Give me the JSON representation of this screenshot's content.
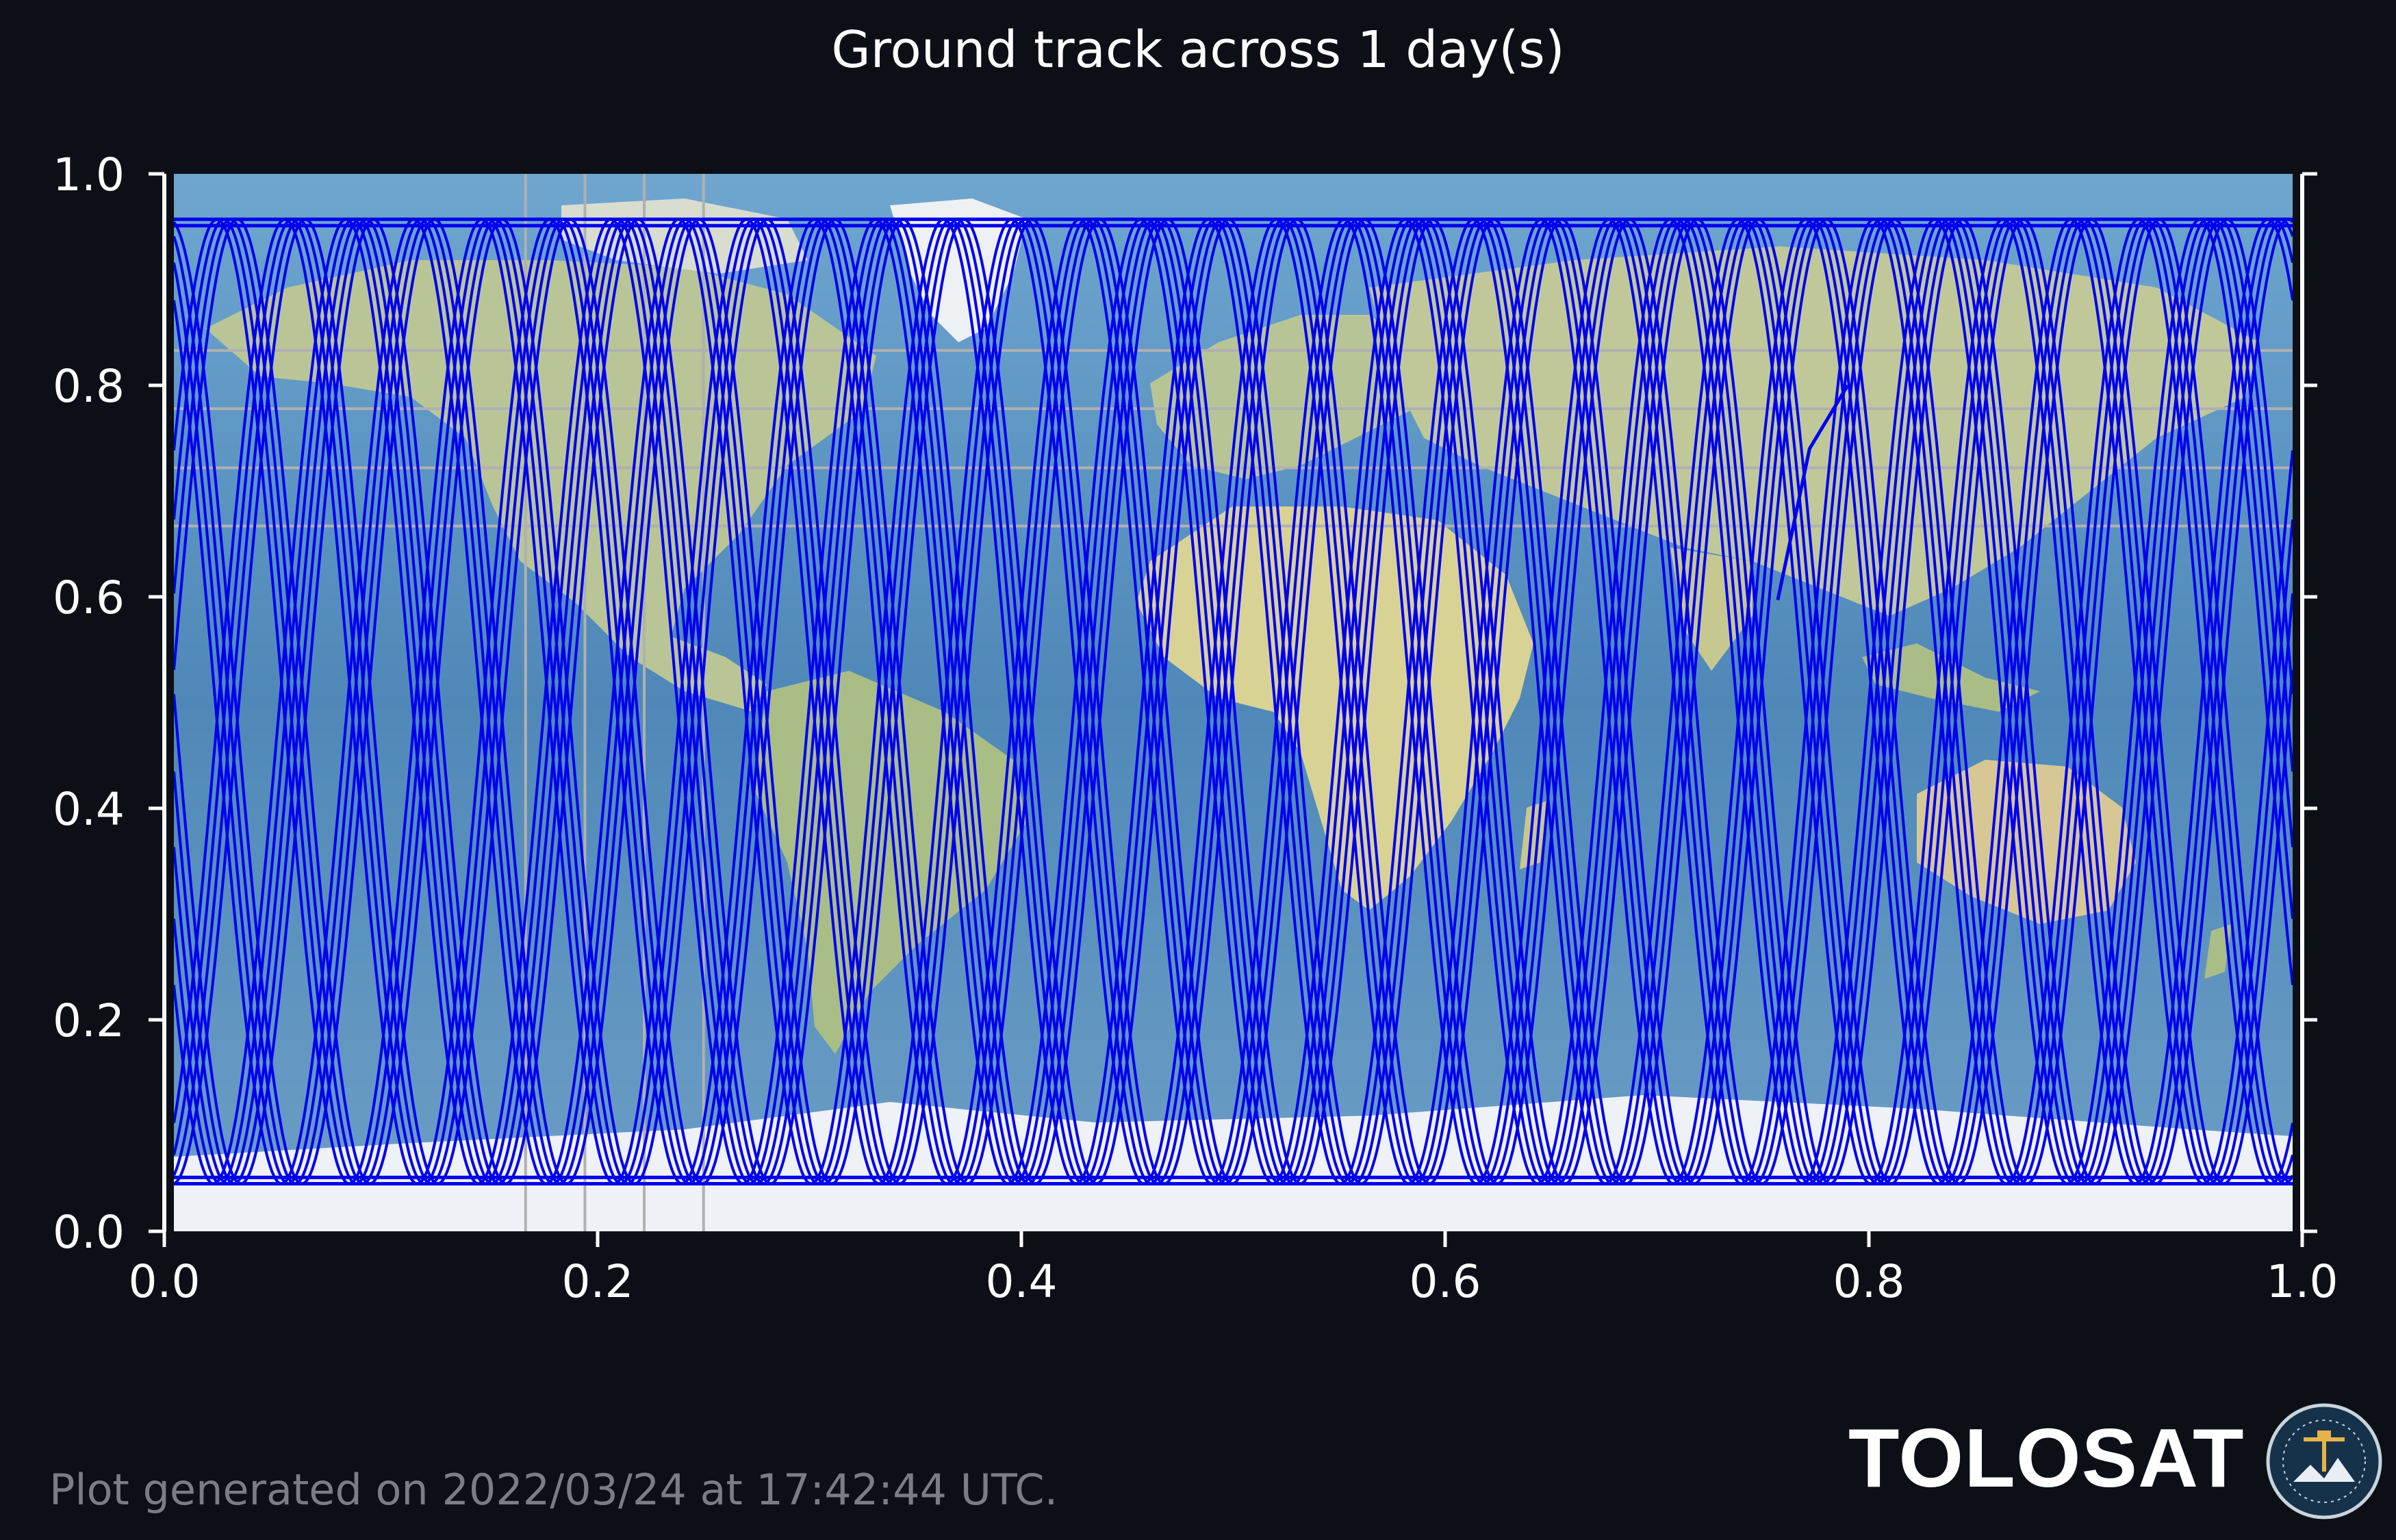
{
  "chart_data": {
    "type": "line",
    "title": "Ground track across 1 day(s)",
    "xlim": [
      0.0,
      1.0
    ],
    "ylim": [
      0.0,
      1.0
    ],
    "x_ticks": [
      "0.0",
      "0.2",
      "0.4",
      "0.6",
      "0.8",
      "1.0"
    ],
    "y_ticks": [
      "0.0",
      "0.2",
      "0.4",
      "0.6",
      "0.8",
      "1.0"
    ],
    "background": "world map (equirectangular projection)",
    "line_color": "#0000ee",
    "series": [
      {
        "values": "ground track: ~16 sinusoidal passes spanning y 0.045 to 0.957, ending near x 0.757, y 0.597"
      }
    ],
    "gridlines_x": [
      0.166,
      0.194,
      0.222,
      0.25
    ],
    "gridlines_y": [
      0.667,
      0.722,
      0.778,
      0.833
    ]
  },
  "footer": "Plot generated on 2022/03/24 at 17:42:44 UTC.",
  "brand": {
    "name": "TOLOSAT",
    "seal_text": "ASTRE CC SUPAERO · TOLOSAT"
  }
}
